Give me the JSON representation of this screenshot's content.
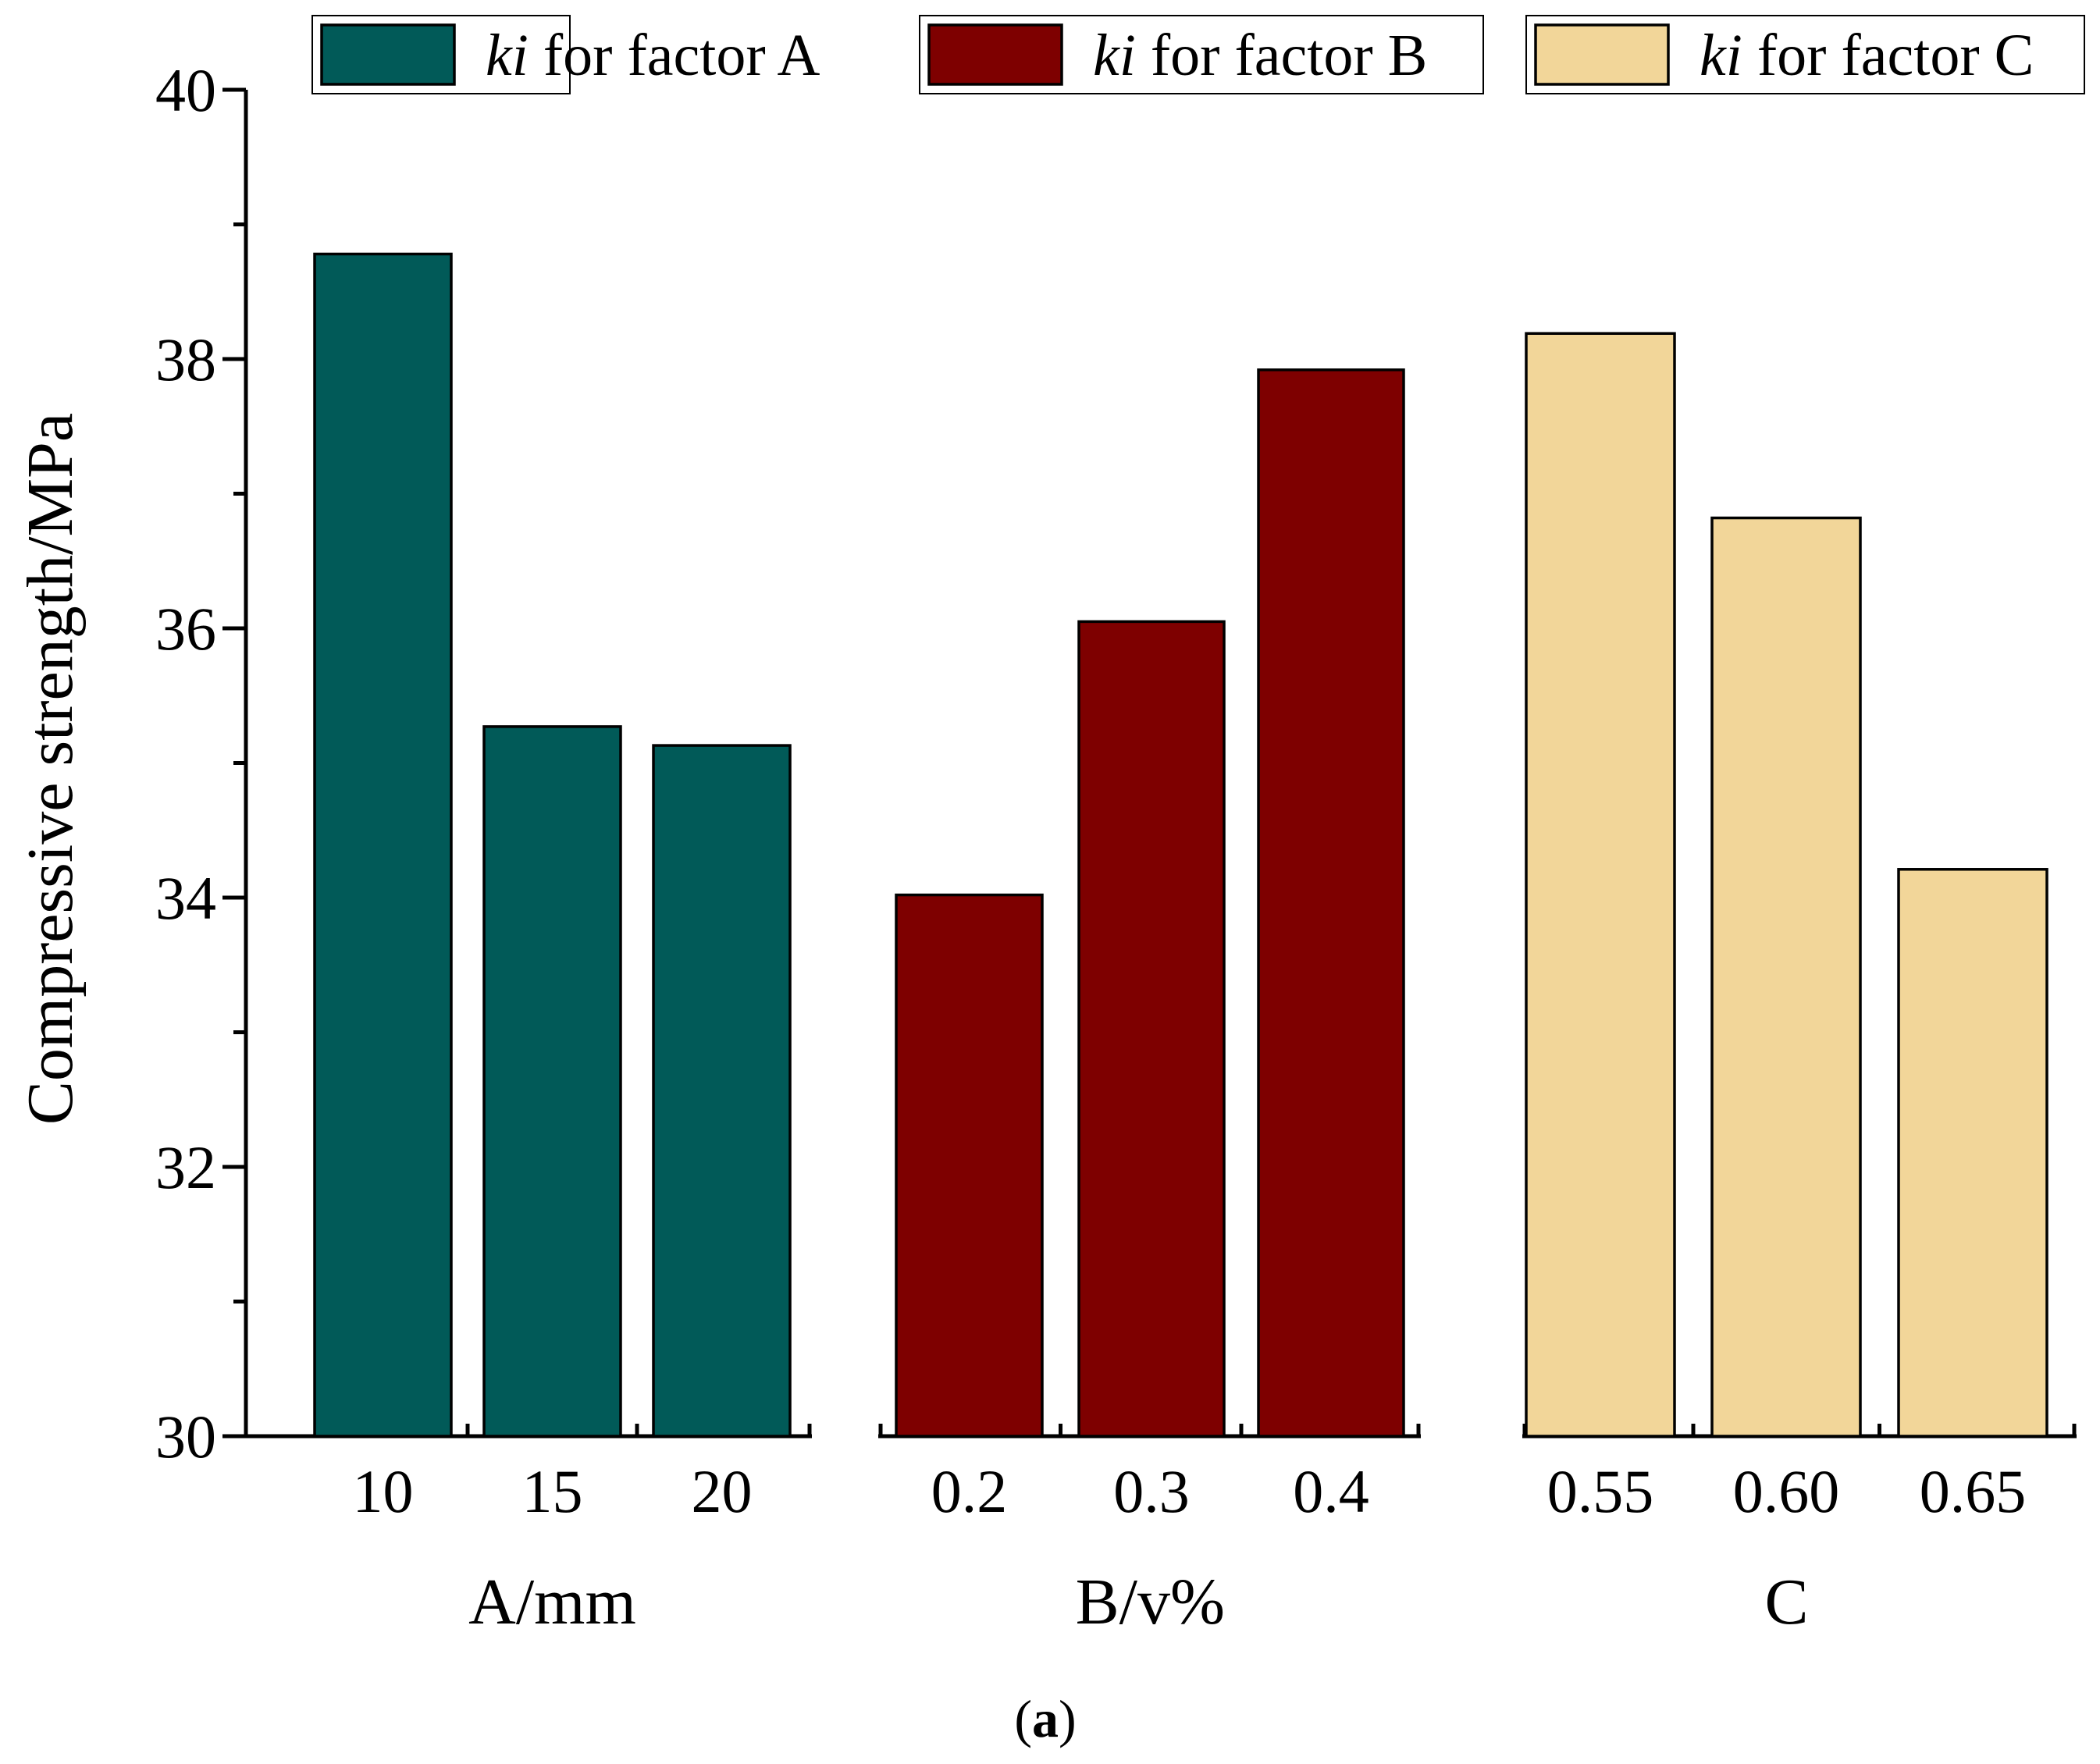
{
  "chart_data": {
    "type": "bar",
    "ylabel": "Compressive strength/MPa",
    "ylim": [
      30,
      40
    ],
    "yticks": [
      "30",
      "32",
      "34",
      "36",
      "38",
      "40"
    ],
    "caption": {
      "open": "(",
      "letter": "a",
      "close": ")"
    },
    "groups": [
      {
        "name": "A",
        "xlabel": "A/mm",
        "legend": {
          "italic": "ki",
          "rest": " for factor A"
        },
        "color": "#015a58",
        "categories": [
          "10",
          "15",
          "20"
        ],
        "values": [
          38.78,
          35.27,
          35.13
        ]
      },
      {
        "name": "B",
        "xlabel": "B/v%",
        "legend": {
          "italic": "ki",
          "rest": " for factor B"
        },
        "color": "#7e0000",
        "categories": [
          "0.2",
          "0.3",
          "0.4"
        ],
        "values": [
          34.02,
          36.05,
          37.92
        ]
      },
      {
        "name": "C",
        "xlabel": "C",
        "legend": {
          "italic": "ki",
          "rest": " for factor C"
        },
        "color": "#f2d699",
        "categories": [
          "0.55",
          "0.60",
          "0.65"
        ],
        "values": [
          38.19,
          36.82,
          34.21
        ]
      }
    ]
  }
}
